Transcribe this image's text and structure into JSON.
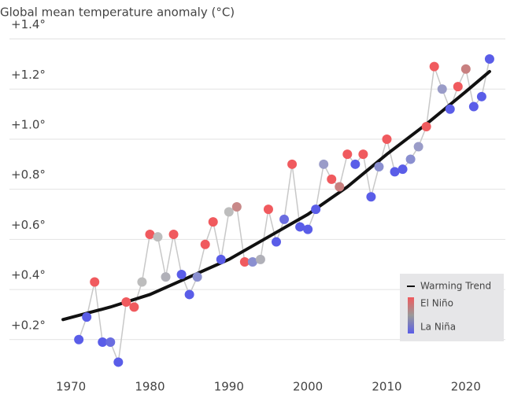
{
  "chart_data": {
    "type": "line",
    "title": "Global mean temperature anomaly (°C)",
    "x": [
      1971,
      1972,
      1973,
      1974,
      1975,
      1976,
      1977,
      1978,
      1979,
      1980,
      1981,
      1982,
      1983,
      1984,
      1985,
      1986,
      1987,
      1988,
      1989,
      1990,
      1991,
      1992,
      1993,
      1994,
      1995,
      1996,
      1997,
      1998,
      1999,
      2000,
      2001,
      2002,
      2003,
      2004,
      2005,
      2006,
      2007,
      2008,
      2009,
      2010,
      2011,
      2012,
      2013,
      2014,
      2015,
      2016,
      2017,
      2018,
      2019,
      2020,
      2021,
      2022,
      2023
    ],
    "series": [
      {
        "color": "#c8c8c8",
        "values": [
          0.2,
          0.29,
          0.43,
          0.19,
          0.19,
          0.11,
          0.35,
          0.33,
          0.43,
          0.62,
          0.61,
          0.45,
          0.62,
          0.46,
          0.38,
          0.45,
          0.58,
          0.67,
          0.52,
          0.71,
          0.73,
          0.51,
          0.51,
          0.52,
          0.72,
          0.59,
          0.68,
          0.9,
          0.65,
          0.64,
          0.72,
          0.9,
          0.84,
          0.81,
          0.94,
          0.9,
          0.94,
          0.77,
          0.89,
          1.0,
          0.87,
          0.88,
          0.92,
          0.97,
          1.05,
          1.29,
          1.2,
          1.12,
          1.21,
          1.28,
          1.13,
          1.17,
          1.32
        ],
        "point_colors": [
          "#5a5de8",
          "#5a5de8",
          "#f05a5e",
          "#5a5de8",
          "#6a6de0",
          "#5a5de8",
          "#f05a5e",
          "#f05a5e",
          "#bdbdbd",
          "#f05a5e",
          "#bdbdbd",
          "#b0b0b8",
          "#f05a5e",
          "#5a5de8",
          "#5a5de8",
          "#8a8fd0",
          "#f05a5e",
          "#f05a5e",
          "#5a5de8",
          "#bdbdbd",
          "#c88888",
          "#f05a5e",
          "#8a8fd0",
          "#b0b0b8",
          "#f05a5e",
          "#5a5de8",
          "#6a6de0",
          "#f05a5e",
          "#5a5de8",
          "#5a5de8",
          "#5a5de8",
          "#9a9cc8",
          "#f05a5e",
          "#c88080",
          "#f05a5e",
          "#5a5de8",
          "#f05a5e",
          "#5a5de8",
          "#8a8fd0",
          "#f05a5e",
          "#5a5de8",
          "#5a5de8",
          "#8a8fd0",
          "#9a9cc8",
          "#f05a5e",
          "#f05a5e",
          "#9a9cc8",
          "#5a5de8",
          "#f05a5e",
          "#c88080",
          "#5a5de8",
          "#5a5de8",
          "#5a5de8"
        ]
      },
      {
        "name": "Warming Trend",
        "color": "#111111",
        "x": [
          1969,
          1975,
          1980,
          1985,
          1990,
          1995,
          2000,
          2005,
          2010,
          2015,
          2020,
          2023
        ],
        "values": [
          0.28,
          0.33,
          0.38,
          0.45,
          0.52,
          0.61,
          0.7,
          0.81,
          0.94,
          1.06,
          1.19,
          1.27
        ]
      }
    ],
    "color_scale": {
      "high": "El Niño",
      "low": "La Niña",
      "high_color": "#f05a5e",
      "low_color": "#5a5de8"
    },
    "xlim": [
      1967,
      2025
    ],
    "ylim": [
      0.08,
      1.43
    ],
    "xticks": [
      1970,
      1980,
      1990,
      2000,
      2010,
      2020
    ],
    "yticks": [
      {
        "value": 0.2,
        "label": "+0.2°"
      },
      {
        "value": 0.4,
        "label": "+0.4°"
      },
      {
        "value": 0.6,
        "label": "+0.6°"
      },
      {
        "value": 0.8,
        "label": "+0.8°"
      },
      {
        "value": 1.0,
        "label": "+1.0°"
      },
      {
        "value": 1.2,
        "label": "+1.2°"
      },
      {
        "value": 1.4,
        "label": "+1.4°"
      }
    ],
    "grid": true
  }
}
